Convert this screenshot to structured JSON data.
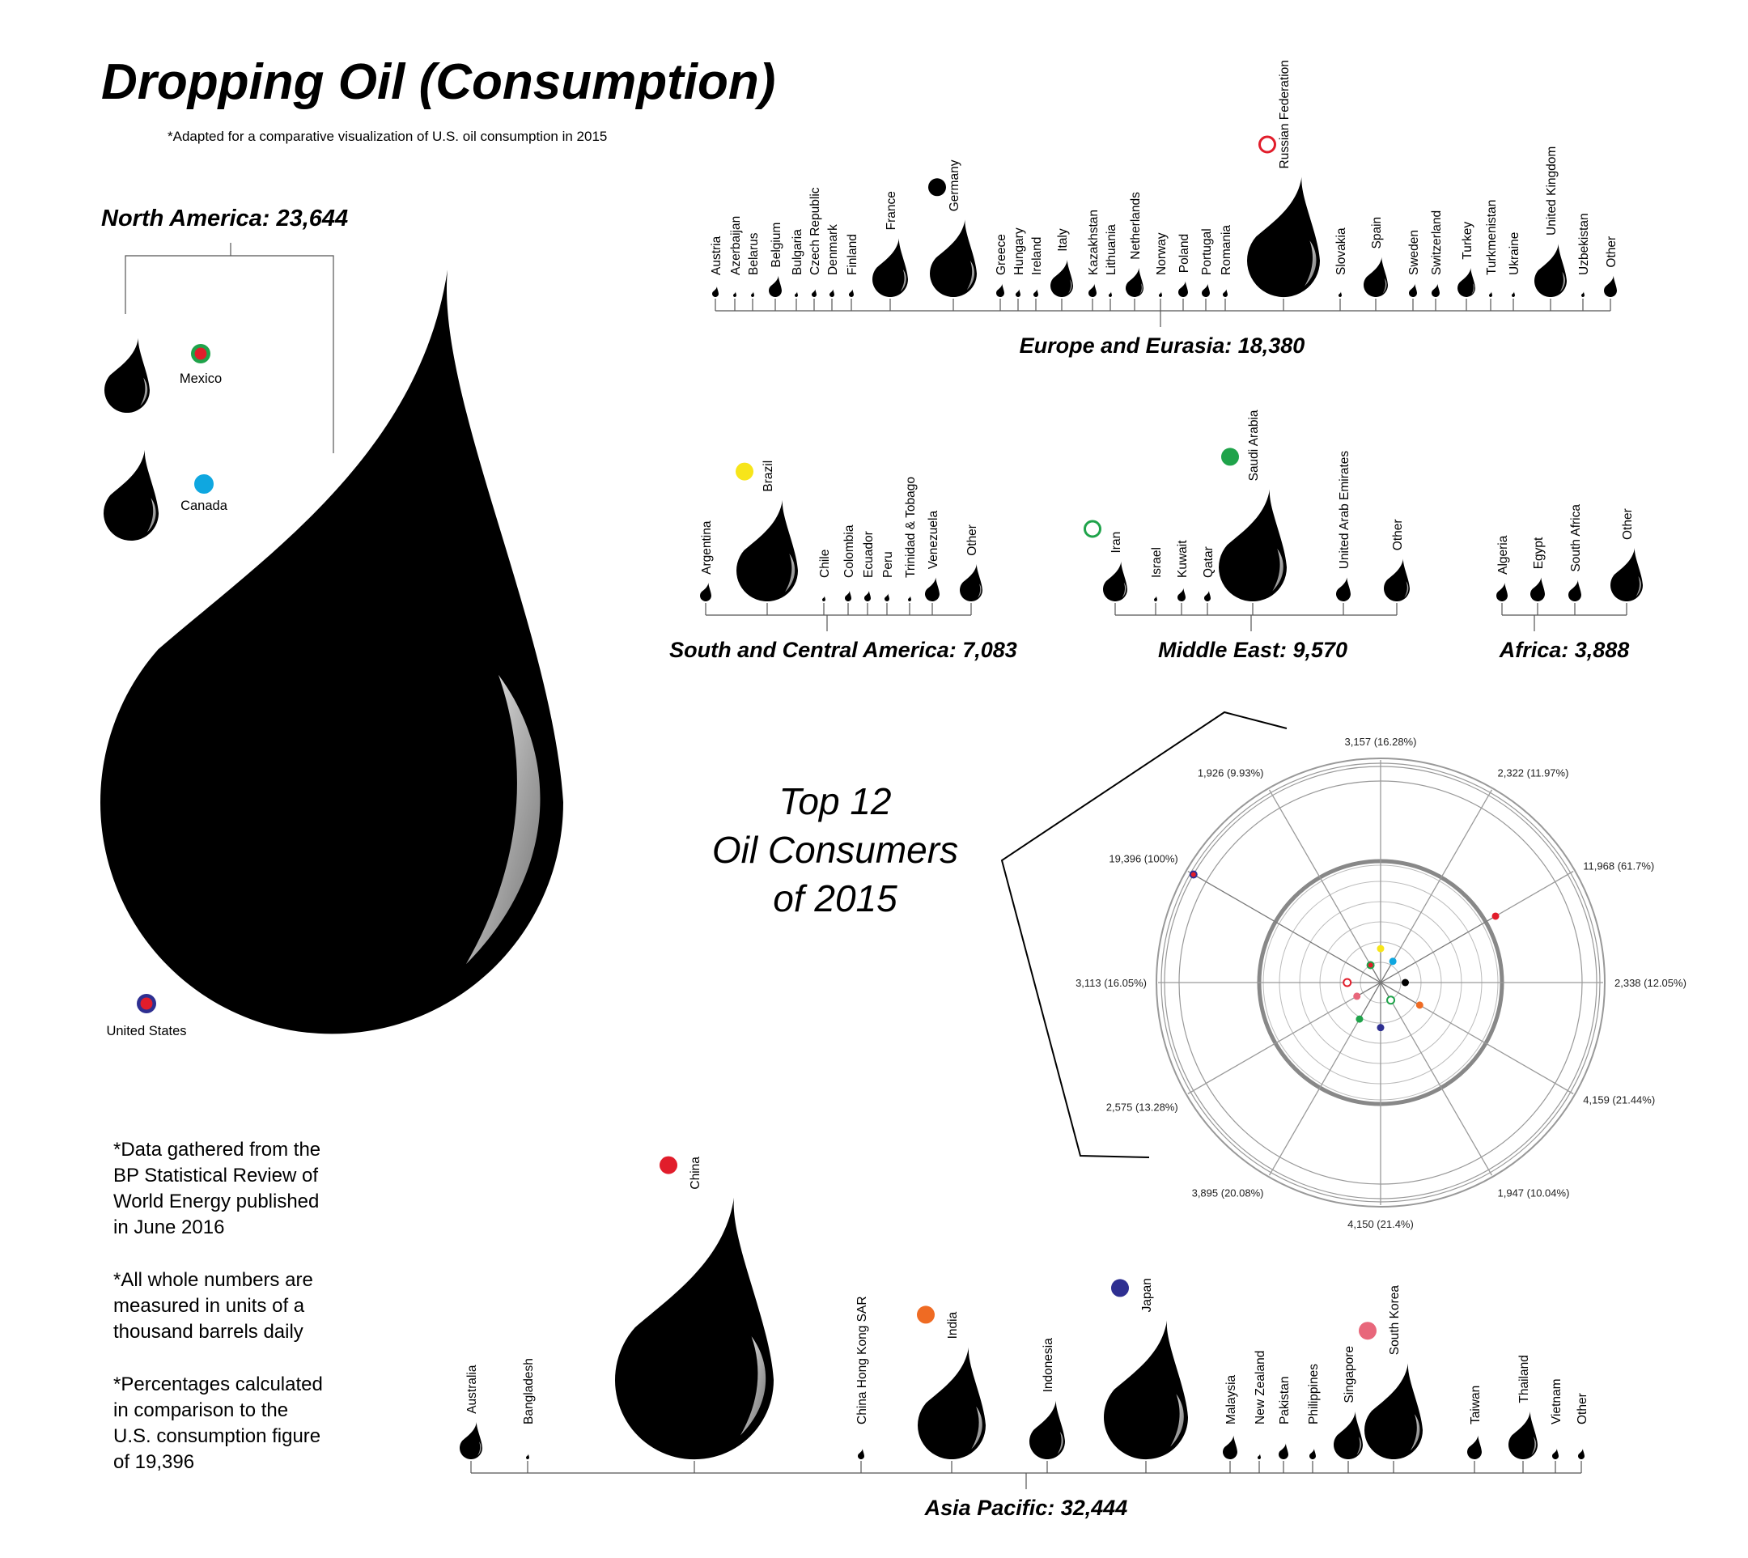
{
  "title": "Dropping Oil (Consumption)",
  "subtitle": "*Adapted for a comparative visualization of U.S. oil consumption in 2015",
  "notes": [
    [
      "*Data gathered from the",
      "BP Statistical Review of",
      "World Energy published",
      "in June 2016"
    ],
    [
      "*All whole numbers are",
      "measured in units of a",
      "thousand barrels daily"
    ],
    [
      "*Percentages calculated",
      "in comparison to the",
      "U.S. consumption figure",
      "of 19,396"
    ]
  ],
  "chart_data": [
    {
      "type": "bubble",
      "region": "North America",
      "total_label": "North America: 23,644",
      "total": 23644,
      "countries": [
        {
          "name": "Mexico",
          "marker": "#e11d2b",
          "marker_ring": "#1fa34a"
        },
        {
          "name": "Canada",
          "marker": "#0fa7e0"
        },
        {
          "name": "United States",
          "marker": "#e11d2b",
          "marker_ring": "#2e2f91"
        }
      ]
    },
    {
      "type": "bubble",
      "region": "Europe and Eurasia",
      "total_label": "Europe and Eurasia: 18,380",
      "total": 18380,
      "countries": [
        {
          "name": "Austria"
        },
        {
          "name": "Azerbaijan"
        },
        {
          "name": "Belarus"
        },
        {
          "name": "Belgium"
        },
        {
          "name": "Bulgaria"
        },
        {
          "name": "Czech Republic"
        },
        {
          "name": "Denmark"
        },
        {
          "name": "Finland"
        },
        {
          "name": "France"
        },
        {
          "name": "Germany",
          "marker": "#000000"
        },
        {
          "name": "Greece"
        },
        {
          "name": "Hungary"
        },
        {
          "name": "Ireland"
        },
        {
          "name": "Italy"
        },
        {
          "name": "Kazakhstan"
        },
        {
          "name": "Lithuania"
        },
        {
          "name": "Netherlands"
        },
        {
          "name": "Norway"
        },
        {
          "name": "Poland"
        },
        {
          "name": "Portugal"
        },
        {
          "name": "Romania"
        },
        {
          "name": "Russian Federation",
          "marker": "none",
          "marker_ring": "#e11d2b"
        },
        {
          "name": "Slovakia"
        },
        {
          "name": "Spain"
        },
        {
          "name": "Sweden"
        },
        {
          "name": "Switzerland"
        },
        {
          "name": "Turkey"
        },
        {
          "name": "Turkmenistan"
        },
        {
          "name": "Ukraine"
        },
        {
          "name": "United Kingdom"
        },
        {
          "name": "Uzbekistan"
        },
        {
          "name": "Other"
        }
      ]
    },
    {
      "type": "bubble",
      "region": "South and Central America",
      "total_label": "South and Central America: 7,083",
      "total": 7083,
      "countries": [
        {
          "name": "Argentina"
        },
        {
          "name": "Brazil",
          "marker": "#f7e51a"
        },
        {
          "name": "Chile"
        },
        {
          "name": "Colombia"
        },
        {
          "name": "Ecuador"
        },
        {
          "name": "Peru"
        },
        {
          "name": "Trinidad & Tobago"
        },
        {
          "name": "Venezuela"
        },
        {
          "name": "Other"
        }
      ]
    },
    {
      "type": "bubble",
      "region": "Middle East",
      "total_label": "Middle East: 9,570",
      "total": 9570,
      "countries": [
        {
          "name": "Iran",
          "marker": "none",
          "marker_ring": "#1fa34a"
        },
        {
          "name": "Israel"
        },
        {
          "name": "Kuwait"
        },
        {
          "name": "Qatar"
        },
        {
          "name": "Saudi Arabia",
          "marker": "#1fa34a"
        },
        {
          "name": "United Arab Emirates"
        },
        {
          "name": "Other"
        }
      ]
    },
    {
      "type": "bubble",
      "region": "Africa",
      "total_label": "Africa: 3,888",
      "total": 3888,
      "countries": [
        {
          "name": "Algeria"
        },
        {
          "name": "Egypt"
        },
        {
          "name": "South Africa"
        },
        {
          "name": "Other"
        }
      ]
    },
    {
      "type": "bubble",
      "region": "Asia Pacific",
      "total_label": "Asia Pacific: 32,444",
      "total": 32444,
      "countries": [
        {
          "name": "Australia"
        },
        {
          "name": "Bangladesh"
        },
        {
          "name": "China",
          "marker": "#e11d2b"
        },
        {
          "name": "China Hong Kong SAR"
        },
        {
          "name": "India",
          "marker": "#ef6b23"
        },
        {
          "name": "Indonesia"
        },
        {
          "name": "Japan",
          "marker": "#2e2f91"
        },
        {
          "name": "Malaysia"
        },
        {
          "name": "New Zealand"
        },
        {
          "name": "Pakistan"
        },
        {
          "name": "Philippines"
        },
        {
          "name": "Singapore"
        },
        {
          "name": "South Korea",
          "marker": "#e8677b"
        },
        {
          "name": "Taiwan"
        },
        {
          "name": "Thailand"
        },
        {
          "name": "Vietnam"
        },
        {
          "name": "Other"
        }
      ]
    },
    {
      "type": "radial",
      "title": "Top 12\nOil Consumers\nof 2015",
      "title_lines": [
        "Top 12",
        "Oil Consumers",
        "of 2015"
      ],
      "reference": 19396,
      "points": [
        {
          "label": "3,157 (16.28%)",
          "value": 3157,
          "percent": 16.28,
          "color": "#f7e51a",
          "hollow": false
        },
        {
          "label": "2,322 (11.97%)",
          "value": 2322,
          "percent": 11.97,
          "color": "#0fa7e0",
          "hollow": false
        },
        {
          "label": "11,968 (61.7%)",
          "value": 11968,
          "percent": 61.7,
          "color": "#e11d2b",
          "hollow": false
        },
        {
          "label": "2,338 (12.05%)",
          "value": 2338,
          "percent": 12.05,
          "color": "#000000",
          "hollow": false
        },
        {
          "label": "4,159 (21.44%)",
          "value": 4159,
          "percent": 21.44,
          "color": "#ef6b23",
          "hollow": false
        },
        {
          "label": "1,947 (10.04%)",
          "value": 1947,
          "percent": 10.04,
          "color": "#1fa34a",
          "hollow": true
        },
        {
          "label": "4,150 (21.4%)",
          "value": 4150,
          "percent": 21.4,
          "color": "#2e2f91",
          "hollow": false
        },
        {
          "label": "3,895 (20.08%)",
          "value": 3895,
          "percent": 20.08,
          "color": "#1fa34a",
          "hollow": false
        },
        {
          "label": "2,575 (13.28%)",
          "value": 2575,
          "percent": 13.28,
          "color": "#e8677b",
          "hollow": false
        },
        {
          "label": "3,113 (16.05%)",
          "value": 3113,
          "percent": 16.05,
          "color": "#e11d2b",
          "hollow": true
        },
        {
          "label": "19,396 (100%)",
          "value": 19396,
          "percent": 100,
          "color": "#e11d2b",
          "hollow": false,
          "ring": "#2e2f91"
        },
        {
          "label": "1,926 (9.93%)",
          "value": 1926,
          "percent": 9.93,
          "color": "#e11d2b",
          "hollow": false,
          "ring": "#1fa34a"
        }
      ]
    }
  ]
}
